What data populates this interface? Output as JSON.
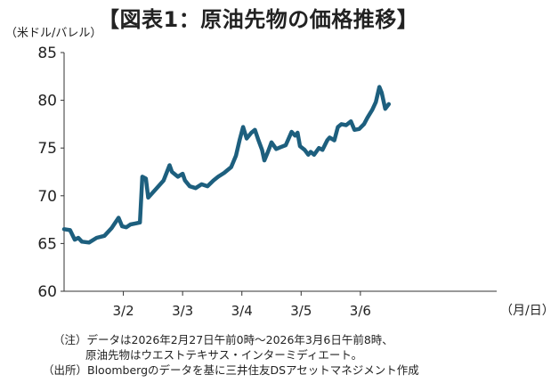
{
  "title": "【図表1：原油先物の価格推移】",
  "unit_label": "（米ドル/バレル）",
  "x_unit_label": "（月/日）",
  "notes": {
    "line1": "（注）データは2026年2月27日午前0時～2026年3月6日午前8時、",
    "line2": "原油先物はウエストテキサス・インターミディエート。",
    "line3": "（出所）Bloombergのデータを基に三井住友DSアセットマネジメント作成"
  },
  "colors": {
    "line": "#1d5f7e",
    "axis": "#333333"
  },
  "chart_data": {
    "type": "line",
    "title": "【図表1：原油先物の価格推移】",
    "ylabel": "（米ドル/バレル）",
    "xlabel": "（月/日）",
    "ylim": [
      60,
      85
    ],
    "xlim": [
      0,
      7.3
    ],
    "yticks": [
      60,
      65,
      70,
      75,
      80,
      85
    ],
    "xticks": [
      {
        "pos": 1,
        "label": "3/2"
      },
      {
        "pos": 2,
        "label": "3/3"
      },
      {
        "pos": 3,
        "label": "3/4"
      },
      {
        "pos": 4,
        "label": "3/5"
      },
      {
        "pos": 5,
        "label": "3/6"
      }
    ],
    "grid": false,
    "series": [
      {
        "points": [
          [
            0.0,
            66.5
          ],
          [
            0.1,
            66.4
          ],
          [
            0.18,
            65.4
          ],
          [
            0.24,
            65.6
          ],
          [
            0.3,
            65.2
          ],
          [
            0.42,
            65.1
          ],
          [
            0.55,
            65.6
          ],
          [
            0.68,
            65.8
          ],
          [
            0.8,
            66.6
          ],
          [
            0.92,
            67.7
          ],
          [
            0.98,
            66.8
          ],
          [
            1.05,
            66.7
          ],
          [
            1.12,
            67.0
          ],
          [
            1.2,
            67.1
          ],
          [
            1.28,
            67.2
          ],
          [
            1.32,
            72.0
          ],
          [
            1.38,
            71.8
          ],
          [
            1.42,
            69.8
          ],
          [
            1.55,
            70.7
          ],
          [
            1.68,
            71.6
          ],
          [
            1.78,
            73.2
          ],
          [
            1.82,
            72.5
          ],
          [
            1.92,
            72.0
          ],
          [
            2.0,
            72.3
          ],
          [
            2.04,
            71.6
          ],
          [
            2.12,
            71.0
          ],
          [
            2.22,
            70.8
          ],
          [
            2.32,
            71.2
          ],
          [
            2.42,
            71.0
          ],
          [
            2.52,
            71.6
          ],
          [
            2.6,
            72.0
          ],
          [
            2.7,
            72.4
          ],
          [
            2.82,
            73.0
          ],
          [
            2.9,
            74.2
          ],
          [
            2.96,
            75.8
          ],
          [
            3.02,
            77.2
          ],
          [
            3.08,
            76.0
          ],
          [
            3.16,
            76.6
          ],
          [
            3.22,
            76.9
          ],
          [
            3.28,
            75.8
          ],
          [
            3.34,
            74.8
          ],
          [
            3.38,
            73.7
          ],
          [
            3.44,
            74.6
          ],
          [
            3.5,
            75.6
          ],
          [
            3.58,
            74.9
          ],
          [
            3.66,
            75.1
          ],
          [
            3.74,
            75.3
          ],
          [
            3.84,
            76.7
          ],
          [
            3.9,
            76.3
          ],
          [
            3.94,
            76.6
          ],
          [
            3.98,
            75.2
          ],
          [
            4.06,
            74.8
          ],
          [
            4.12,
            74.3
          ],
          [
            4.16,
            74.6
          ],
          [
            4.22,
            74.3
          ],
          [
            4.3,
            75.0
          ],
          [
            4.36,
            74.8
          ],
          [
            4.44,
            75.8
          ],
          [
            4.48,
            76.1
          ],
          [
            4.56,
            75.8
          ],
          [
            4.62,
            77.2
          ],
          [
            4.68,
            77.5
          ],
          [
            4.76,
            77.4
          ],
          [
            4.84,
            77.8
          ],
          [
            4.9,
            76.9
          ],
          [
            4.98,
            77.0
          ],
          [
            5.06,
            77.5
          ],
          [
            5.12,
            78.2
          ],
          [
            5.2,
            79.0
          ],
          [
            5.26,
            79.8
          ],
          [
            5.32,
            81.4
          ],
          [
            5.36,
            80.8
          ],
          [
            5.42,
            79.1
          ],
          [
            5.48,
            79.6
          ]
        ]
      }
    ]
  }
}
